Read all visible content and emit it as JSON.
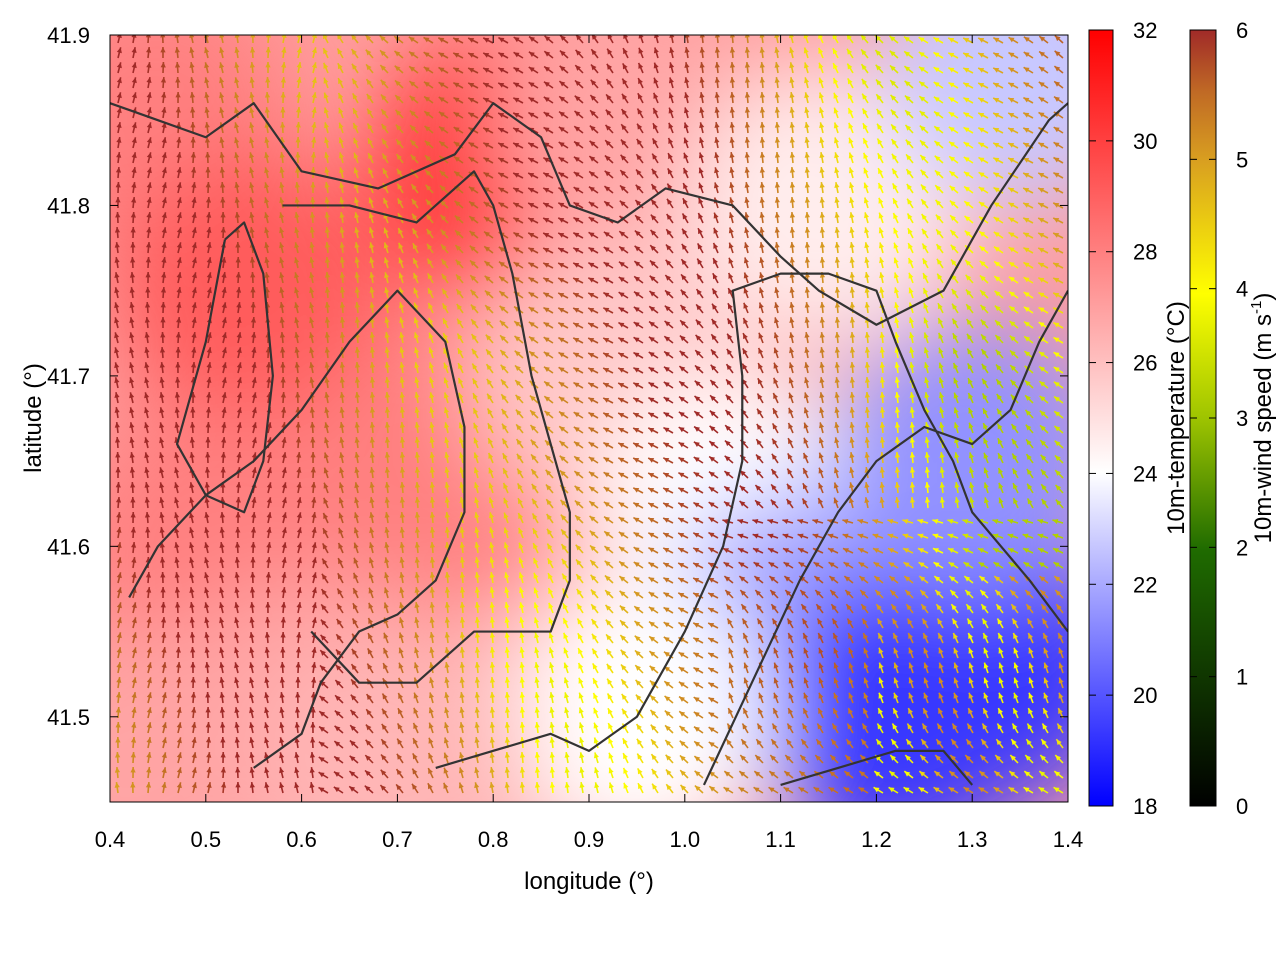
{
  "chart_data": {
    "type": "heatmap",
    "xlabel": "longitude (°)",
    "ylabel": "latitude (°)",
    "xlim": [
      0.4,
      1.4
    ],
    "ylim": [
      41.45,
      41.9
    ],
    "x_ticks": [
      "0.4",
      "0.5",
      "0.6",
      "0.7",
      "0.8",
      "0.9",
      "1.0",
      "1.1",
      "1.2",
      "1.3",
      "1.4"
    ],
    "y_ticks": [
      "41.5",
      "41.6",
      "41.7",
      "41.8",
      "41.9"
    ],
    "temperature_colorbar": {
      "label": "10m-temperature (°C)",
      "range": [
        18,
        32
      ],
      "ticks": [
        "18",
        "20",
        "22",
        "24",
        "26",
        "28",
        "30",
        "32"
      ],
      "colors": [
        "#0000ff",
        "#ffffff",
        "#ff0000"
      ]
    },
    "wind_colorbar": {
      "label_main": "10m-wind speed (m s",
      "label_sup": "-1",
      "label_end": ")",
      "range": [
        0,
        6
      ],
      "ticks": [
        "0",
        "1",
        "2",
        "3",
        "4",
        "5",
        "6"
      ],
      "colors": [
        "#000000",
        "#1f6b00",
        "#9ec400",
        "#ffff00",
        "#d9a020",
        "#c06a25",
        "#a02a28"
      ]
    },
    "temperature_field": [
      {
        "lon": 0.45,
        "lat": 41.85,
        "t": 28.5
      },
      {
        "lon": 0.55,
        "lat": 41.75,
        "t": 29.5
      },
      {
        "lon": 0.5,
        "lat": 41.6,
        "t": 28.5
      },
      {
        "lon": 0.6,
        "lat": 41.5,
        "t": 27.5
      },
      {
        "lon": 0.75,
        "lat": 41.65,
        "t": 28.5
      },
      {
        "lon": 0.82,
        "lat": 41.82,
        "t": 30.5
      },
      {
        "lon": 0.95,
        "lat": 41.85,
        "t": 27.5
      },
      {
        "lon": 0.92,
        "lat": 41.7,
        "t": 26.5
      },
      {
        "lon": 1.05,
        "lat": 41.62,
        "t": 25.0
      },
      {
        "lon": 1.15,
        "lat": 41.8,
        "t": 25.5
      },
      {
        "lon": 1.35,
        "lat": 41.88,
        "t": 23.5
      },
      {
        "lon": 1.12,
        "lat": 41.55,
        "t": 22.5
      },
      {
        "lon": 1.22,
        "lat": 41.5,
        "t": 19.5
      },
      {
        "lon": 1.32,
        "lat": 41.53,
        "t": 19.5
      },
      {
        "lon": 1.3,
        "lat": 41.65,
        "t": 22.0
      },
      {
        "lon": 0.95,
        "lat": 41.5,
        "t": 25.0
      },
      {
        "lon": 0.7,
        "lat": 41.47,
        "t": 27.0
      },
      {
        "lon": 0.42,
        "lat": 41.47,
        "t": 27.5
      }
    ],
    "wind_field_note": "",
    "contours": [
      [
        [
          0.4,
          41.86
        ],
        [
          0.45,
          41.85
        ],
        [
          0.5,
          41.84
        ],
        [
          0.55,
          41.86
        ],
        [
          0.6,
          41.82
        ],
        [
          0.68,
          41.81
        ],
        [
          0.72,
          41.82
        ],
        [
          0.76,
          41.83
        ],
        [
          0.8,
          41.86
        ],
        [
          0.85,
          41.84
        ],
        [
          0.88,
          41.8
        ],
        [
          0.93,
          41.79
        ],
        [
          0.98,
          41.81
        ],
        [
          1.05,
          41.8
        ],
        [
          1.1,
          41.77
        ],
        [
          1.14,
          41.75
        ],
        [
          1.2,
          41.73
        ],
        [
          1.27,
          41.75
        ],
        [
          1.32,
          41.8
        ],
        [
          1.38,
          41.85
        ],
        [
          1.4,
          41.86
        ]
      ],
      [
        [
          0.58,
          41.8
        ],
        [
          0.65,
          41.8
        ],
        [
          0.72,
          41.79
        ],
        [
          0.78,
          41.82
        ],
        [
          0.8,
          41.8
        ],
        [
          0.82,
          41.76
        ],
        [
          0.84,
          41.7
        ],
        [
          0.86,
          41.66
        ],
        [
          0.88,
          41.62
        ],
        [
          0.88,
          41.58
        ],
        [
          0.86,
          41.55
        ],
        [
          0.78,
          41.55
        ],
        [
          0.72,
          41.52
        ],
        [
          0.66,
          41.52
        ],
        [
          0.61,
          41.55
        ]
      ],
      [
        [
          0.52,
          41.78
        ],
        [
          0.5,
          41.72
        ],
        [
          0.47,
          41.66
        ],
        [
          0.5,
          41.63
        ],
        [
          0.54,
          41.62
        ],
        [
          0.56,
          41.65
        ],
        [
          0.57,
          41.7
        ],
        [
          0.56,
          41.76
        ],
        [
          0.54,
          41.79
        ],
        [
          0.52,
          41.78
        ]
      ],
      [
        [
          0.42,
          41.57
        ],
        [
          0.45,
          41.6
        ],
        [
          0.5,
          41.63
        ],
        [
          0.55,
          41.65
        ],
        [
          0.6,
          41.68
        ],
        [
          0.65,
          41.72
        ],
        [
          0.7,
          41.75
        ],
        [
          0.75,
          41.72
        ],
        [
          0.77,
          41.67
        ],
        [
          0.77,
          41.62
        ],
        [
          0.74,
          41.58
        ],
        [
          0.7,
          41.56
        ],
        [
          0.66,
          41.55
        ],
        [
          0.62,
          41.52
        ],
        [
          0.6,
          41.49
        ],
        [
          0.55,
          41.47
        ]
      ],
      [
        [
          0.74,
          41.47
        ],
        [
          0.8,
          41.48
        ],
        [
          0.86,
          41.49
        ],
        [
          0.9,
          41.48
        ],
        [
          0.95,
          41.5
        ],
        [
          1.0,
          41.55
        ],
        [
          1.04,
          41.6
        ],
        [
          1.06,
          41.65
        ],
        [
          1.06,
          41.7
        ],
        [
          1.05,
          41.75
        ],
        [
          1.1,
          41.76
        ],
        [
          1.15,
          41.76
        ],
        [
          1.2,
          41.75
        ],
        [
          1.22,
          41.72
        ],
        [
          1.25,
          41.68
        ],
        [
          1.28,
          41.65
        ],
        [
          1.3,
          41.62
        ],
        [
          1.33,
          41.6
        ],
        [
          1.36,
          41.58
        ],
        [
          1.4,
          41.55
        ]
      ],
      [
        [
          1.02,
          41.46
        ],
        [
          1.07,
          41.52
        ],
        [
          1.12,
          41.58
        ],
        [
          1.16,
          41.62
        ],
        [
          1.2,
          41.65
        ],
        [
          1.25,
          41.67
        ],
        [
          1.3,
          41.66
        ],
        [
          1.34,
          41.68
        ],
        [
          1.37,
          41.72
        ],
        [
          1.4,
          41.75
        ]
      ],
      [
        [
          1.1,
          41.46
        ],
        [
          1.16,
          41.47
        ],
        [
          1.22,
          41.48
        ],
        [
          1.27,
          41.48
        ],
        [
          1.3,
          41.46
        ]
      ]
    ]
  }
}
